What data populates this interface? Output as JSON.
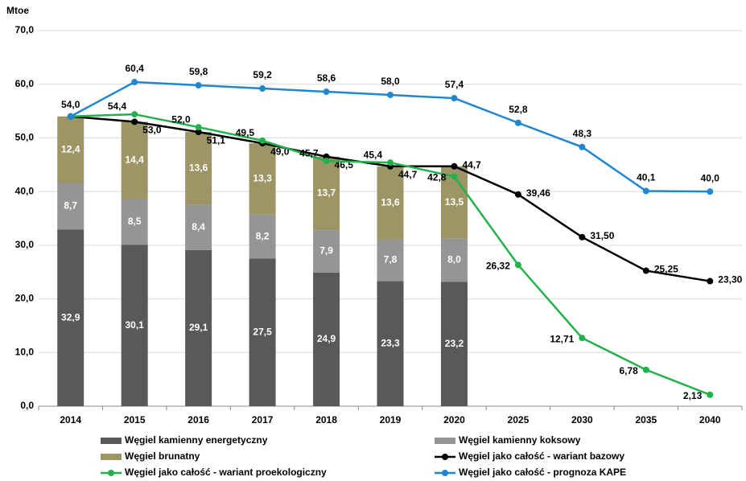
{
  "chart_data": {
    "type": "bar-line",
    "y_label": "Mtoe",
    "categories": [
      "2014",
      "2015",
      "2016",
      "2017",
      "2018",
      "2019",
      "2020",
      "2025",
      "2030",
      "2035",
      "2040"
    ],
    "ylim": [
      0,
      70
    ],
    "yticks": [
      {
        "value": 0,
        "label": "0,0"
      },
      {
        "value": 10,
        "label": "10,0"
      },
      {
        "value": 20,
        "label": "20,0"
      },
      {
        "value": 30,
        "label": "30,0"
      },
      {
        "value": 40,
        "label": "40,0"
      },
      {
        "value": 50,
        "label": "50,0"
      },
      {
        "value": 60,
        "label": "60,0"
      },
      {
        "value": 70,
        "label": "70,0"
      }
    ],
    "grid": true,
    "series": [
      {
        "name": "Węgiel kamienny energetyczny",
        "type": "bar",
        "color": "#595959",
        "values": [
          32.9,
          30.1,
          29.1,
          27.5,
          24.9,
          23.3,
          23.2,
          null,
          null,
          null,
          null
        ],
        "value_labels": [
          "32,9",
          "30,1",
          "29,1",
          "27,5",
          "24,9",
          "23,3",
          "23,2",
          null,
          null,
          null,
          null
        ]
      },
      {
        "name": "Węgiel kamienny koksowy",
        "type": "bar",
        "color": "#959595",
        "values": [
          8.7,
          8.5,
          8.4,
          8.2,
          7.9,
          7.8,
          8.0,
          null,
          null,
          null,
          null
        ],
        "value_labels": [
          "8,7",
          "8,5",
          "8,4",
          "8,2",
          "7,9",
          "7,8",
          "8,0",
          null,
          null,
          null,
          null
        ]
      },
      {
        "name": "Węgiel brunatny",
        "type": "bar",
        "color": "#9d9566",
        "values": [
          12.4,
          14.4,
          13.6,
          13.3,
          13.7,
          13.6,
          13.5,
          null,
          null,
          null,
          null
        ],
        "value_labels": [
          "12,4",
          "14,4",
          "13,6",
          "13,3",
          "13,7",
          "13,6",
          "13,5",
          null,
          null,
          null,
          null
        ]
      },
      {
        "name": "Węgiel jako całość - wariant bazowy",
        "type": "line",
        "color": "#000000",
        "values": [
          54.0,
          53.0,
          51.1,
          49.0,
          46.5,
          44.7,
          44.7,
          39.46,
          31.5,
          25.25,
          23.3
        ],
        "value_labels": [
          "54,0",
          "53,0",
          "51,1",
          "49,0",
          "46,5",
          "44,7",
          "44,7",
          "39,46",
          "31,50",
          "25,25",
          "23,30"
        ]
      },
      {
        "name": "Węgiel jako całość - wariant proekologiczny",
        "type": "line",
        "color": "#22b24c",
        "values": [
          54.0,
          54.4,
          52.0,
          49.5,
          45.7,
          45.4,
          42.8,
          26.32,
          12.71,
          6.78,
          2.13
        ],
        "value_labels": [
          null,
          "54,4",
          "52,0",
          "49,5",
          "45,7",
          "45,4",
          "42,8",
          "26,32",
          "12,71",
          "6,78",
          "2,13"
        ]
      },
      {
        "name": "Węgiel jako całość - prognoza KAPE",
        "type": "line",
        "color": "#1f86d0",
        "values": [
          54.0,
          60.4,
          59.8,
          59.2,
          58.6,
          58.0,
          57.4,
          52.8,
          48.3,
          40.1,
          40.0
        ],
        "value_labels": [
          null,
          "60,4",
          "59,8",
          "59,2",
          "58,6",
          "58,0",
          "57,4",
          "52,8",
          "48,3",
          "40,1",
          "40,0"
        ]
      }
    ]
  }
}
